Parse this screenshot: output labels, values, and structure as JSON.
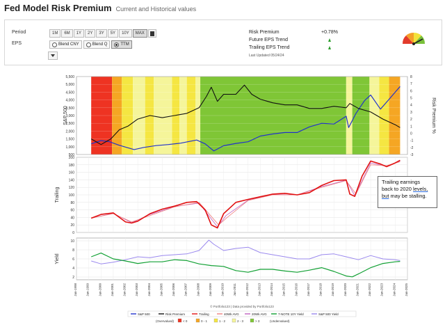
{
  "header": {
    "title": "Fed Model Risk Premium",
    "subtitle": "Current and Historical values"
  },
  "settings": {
    "period_label": "Period",
    "periods": [
      "1M",
      "6M",
      "1Y",
      "2Y",
      "3Y",
      "5Y",
      "10Y",
      "MAX"
    ],
    "active_period": "MAX",
    "eps_label": "EPS",
    "eps_options": [
      "Blend CNY",
      "Blend Q",
      "TTM"
    ],
    "active_eps": "TTM"
  },
  "stats": {
    "risk_premium_label": "Risk Premium",
    "risk_premium_value": "+0.78%",
    "future_eps_label": "Future EPS Trend",
    "trailing_eps_label": "Trailing EPS Trend",
    "last_updated": "Last Updated 05/24/24"
  },
  "colors": {
    "sp500": "#2233cc",
    "risk_premium": "#111111",
    "trailing": "#e11111",
    "avg40": "#f08080",
    "avg20": "#c060c0",
    "tnote": "#11a033",
    "sp_yield": "#9a88ee"
  },
  "chart_data": [
    {
      "type": "line",
      "ylabel": "S&P 500",
      "y2label": "Risk Premium %",
      "ylim": [
        500,
        6000
      ],
      "y2lim": [
        -3,
        8
      ],
      "yticks": [
        "5,500",
        "5,000",
        "4,500",
        "4,000",
        "3,500",
        "3,000",
        "2,500",
        "2,000",
        "1,500",
        "1,000",
        "500"
      ],
      "y2ticks": [
        "8",
        "7",
        "6",
        "5",
        "4",
        "3",
        "2",
        "1",
        "0",
        "-1",
        "-2",
        "-3"
      ],
      "series": [
        {
          "name": "S&P 500",
          "x": [
            1999.2,
            2000.0,
            2000.7,
            2001.5,
            2002.7,
            2003.5,
            2004.5,
            2005.5,
            2006.5,
            2007.8,
            2008.5,
            2009.2,
            2010.0,
            2011.0,
            2012.0,
            2013.0,
            2014.0,
            2015.0,
            2016.0,
            2017.0,
            2018.0,
            2019.0,
            2020.0,
            2020.2,
            2020.8,
            2021.5,
            2022.0,
            2022.8,
            2023.5,
            2024.0,
            2024.4
          ],
          "values": [
            1250,
            1480,
            1400,
            1150,
            850,
            1000,
            1130,
            1200,
            1300,
            1520,
            1250,
            750,
            1120,
            1280,
            1400,
            1800,
            1950,
            2050,
            2050,
            2450,
            2700,
            2650,
            3200,
            2400,
            3400,
            4300,
            4700,
            3700,
            4400,
            4900,
            5300
          ]
        },
        {
          "name": "Risk Premium",
          "x": [
            1999.2,
            2000.0,
            2000.8,
            2001.5,
            2002.2,
            2003.0,
            2004.0,
            2005.0,
            2006.0,
            2007.0,
            2008.0,
            2008.6,
            2009.0,
            2009.5,
            2010.0,
            2011.0,
            2011.7,
            2012.3,
            2013.0,
            2014.0,
            2015.0,
            2016.0,
            2017.0,
            2018.0,
            2019.0,
            2020.0,
            2020.3,
            2021.0,
            2022.0,
            2023.0,
            2024.0,
            2024.4
          ],
          "values": [
            -0.8,
            -1.6,
            -0.8,
            0.5,
            1.0,
            2.0,
            2.5,
            2.2,
            2.5,
            2.8,
            3.6,
            5.2,
            6.5,
            4.5,
            5.5,
            5.5,
            6.8,
            5.5,
            4.8,
            4.3,
            4.0,
            4.0,
            3.5,
            3.5,
            3.8,
            3.6,
            4.2,
            3.5,
            3.0,
            2.0,
            1.2,
            0.8
          ]
        }
      ]
    },
    {
      "type": "line",
      "ylabel": "Trailing",
      "ylim": [
        0,
        200
      ],
      "yticks": [
        "200",
        "180",
        "160",
        "140",
        "120",
        "100",
        "80",
        "60",
        "40",
        "20",
        "0"
      ],
      "series": [
        {
          "name": "Trailing",
          "x": [
            1999.2,
            2000.0,
            2001.0,
            2002.0,
            2002.5,
            2003.0,
            2004.0,
            2005.0,
            2006.0,
            2007.0,
            2007.8,
            2008.5,
            2009.0,
            2009.5,
            2010.0,
            2011.0,
            2012.0,
            2013.0,
            2014.0,
            2015.0,
            2016.0,
            2017.0,
            2018.0,
            2019.0,
            2020.0,
            2020.3,
            2020.7,
            2021.3,
            2022.0,
            2022.8,
            2023.3,
            2024.0,
            2024.4
          ],
          "values": [
            38,
            48,
            52,
            28,
            25,
            30,
            50,
            62,
            70,
            80,
            82,
            60,
            20,
            12,
            50,
            80,
            88,
            95,
            102,
            104,
            100,
            106,
            125,
            138,
            140,
            102,
            96,
            150,
            190,
            182,
            175,
            185,
            192
          ]
        },
        {
          "name": "40Wk AVG",
          "x": [
            1999.2,
            2001.0,
            2002.5,
            2004.0,
            2006.0,
            2008.0,
            2009.6,
            2010.3,
            2012.0,
            2014.0,
            2016.0,
            2018.0,
            2020.0,
            2020.8,
            2022.0,
            2023.3,
            2024.4
          ],
          "values": [
            38,
            50,
            28,
            45,
            68,
            80,
            20,
            40,
            85,
            100,
            100,
            120,
            138,
            102,
            180,
            178,
            188
          ]
        },
        {
          "name": "20Wk AVG",
          "x": [
            1999.2,
            2001.0,
            2002.5,
            2004.0,
            2006.0,
            2008.0,
            2009.5,
            2010.2,
            2012.0,
            2014.0,
            2016.0,
            2018.0,
            2020.0,
            2020.7,
            2022.0,
            2023.3,
            2024.4
          ],
          "values": [
            38,
            51,
            26,
            48,
            69,
            78,
            15,
            45,
            86,
            101,
            100,
            122,
            139,
            98,
            185,
            176,
            190
          ]
        }
      ]
    },
    {
      "type": "line",
      "ylabel": "Yield",
      "ylim": [
        0,
        10
      ],
      "yticks": [
        "10",
        "8",
        "6",
        "4",
        "2"
      ],
      "series": [
        {
          "name": "7-NOTE 10Y Yield",
          "x": [
            1999.2,
            2000.0,
            2001.0,
            2002.0,
            2003.0,
            2004.0,
            2005.0,
            2006.0,
            2007.0,
            2008.0,
            2009.0,
            2010.0,
            2011.0,
            2012.0,
            2013.0,
            2014.0,
            2015.0,
            2016.0,
            2017.0,
            2018.0,
            2019.0,
            2020.0,
            2020.5,
            2021.0,
            2022.0,
            2023.0,
            2024.0,
            2024.4
          ],
          "values": [
            5.5,
            6.4,
            5.0,
            4.5,
            3.9,
            4.3,
            4.3,
            4.8,
            4.6,
            3.8,
            3.4,
            3.2,
            2.2,
            1.8,
            2.5,
            2.5,
            2.1,
            1.8,
            2.3,
            2.9,
            2.0,
            0.9,
            0.7,
            1.4,
            2.9,
            3.9,
            4.3,
            4.4
          ]
        },
        {
          "name": "S&P 500 Yield",
          "x": [
            1999.2,
            2000.0,
            2001.0,
            2002.0,
            2003.0,
            2004.0,
            2005.0,
            2006.0,
            2007.0,
            2008.0,
            2008.8,
            2009.2,
            2010.0,
            2011.0,
            2012.0,
            2013.0,
            2014.0,
            2015.0,
            2016.0,
            2017.0,
            2018.0,
            2019.0,
            2020.0,
            2021.0,
            2022.0,
            2023.0,
            2024.0,
            2024.4
          ],
          "values": [
            4.5,
            3.8,
            4.2,
            4.8,
            5.5,
            5.3,
            5.8,
            6.0,
            6.2,
            7.0,
            9.5,
            8.5,
            7.0,
            7.5,
            7.8,
            6.5,
            6.0,
            5.5,
            5.0,
            5.0,
            6.0,
            6.2,
            5.5,
            4.8,
            5.8,
            5.0,
            4.8,
            4.6
          ]
        }
      ]
    }
  ],
  "x_axis": {
    "labels": [
      "Jan-1998",
      "Jan-1999",
      "Jan-2000",
      "Jan-2001",
      "Jan-2002",
      "Jan-2003",
      "Jan-2004",
      "Jan-2005",
      "Jan-2006",
      "Jan-2007",
      "Jan-2008",
      "Jan-2009",
      "Jan-2010",
      "Jan-2011",
      "Jan-2012",
      "Jan-2013",
      "Jan-2014",
      "Jan-2015",
      "Jan-2016",
      "Jan-2017",
      "Jan-2018",
      "Jan-2019",
      "Jan-2020",
      "Jan-2021",
      "Jan-2022",
      "Jan-2023",
      "Jan-2024",
      "Jan-2025"
    ],
    "years": [
      1998,
      1999,
      2000,
      2001,
      2002,
      2003,
      2004,
      2005,
      2006,
      2007,
      2008,
      2009,
      2010,
      2011,
      2012,
      2013,
      2014,
      2015,
      2016,
      2017,
      2018,
      2019,
      2020,
      2021,
      2022,
      2023,
      2024,
      2025
    ]
  },
  "band_colors": [
    "#ee3322",
    "#f5a623",
    "#f5e642",
    "#f5f59a",
    "#7fc636"
  ],
  "bands": [
    {
      "from": 1999.2,
      "to": 2000.9,
      "level": 0
    },
    {
      "from": 2000.9,
      "to": 2001.7,
      "level": 1
    },
    {
      "from": 2001.7,
      "to": 2002.6,
      "level": 2
    },
    {
      "from": 2002.6,
      "to": 2003.6,
      "level": 3
    },
    {
      "from": 2003.6,
      "to": 2004.3,
      "level": 2
    },
    {
      "from": 2004.3,
      "to": 2005.8,
      "level": 3
    },
    {
      "from": 2005.8,
      "to": 2006.4,
      "level": 2
    },
    {
      "from": 2006.4,
      "to": 2007.0,
      "level": 3
    },
    {
      "from": 2007.0,
      "to": 2007.7,
      "level": 2
    },
    {
      "from": 2007.7,
      "to": 2008.1,
      "level": 3
    },
    {
      "from": 2008.1,
      "to": 2020.0,
      "level": 4
    },
    {
      "from": 2020.0,
      "to": 2020.5,
      "level": 3
    },
    {
      "from": 2020.5,
      "to": 2021.9,
      "level": 4
    },
    {
      "from": 2021.9,
      "to": 2022.7,
      "level": 3
    },
    {
      "from": 2022.7,
      "to": 2023.5,
      "level": 2
    },
    {
      "from": 2023.5,
      "to": 2024.4,
      "level": 1
    }
  ],
  "footer": {
    "credit": "© Portfolio123 | Data provided by Portfolio123",
    "legend": [
      "S&P 500",
      "Risk Premium",
      "Trailing",
      "40Wk AVG",
      "20Wk AVG",
      "7-NOTE 10Y Yield",
      "S&P 500 Yield"
    ],
    "zones_left": "(Overvalued)",
    "zones": [
      "< 0",
      "0 - 1",
      "1 - 2",
      "2 - 3",
      "> 3"
    ],
    "zones_right": "(Undervalued)"
  },
  "annotation": {
    "line1": "Trailing earnings",
    "line2_a": "back to 2020 ",
    "line2_b": "levels,",
    "line3_a": "but",
    "line3_b": " may be stalling."
  }
}
